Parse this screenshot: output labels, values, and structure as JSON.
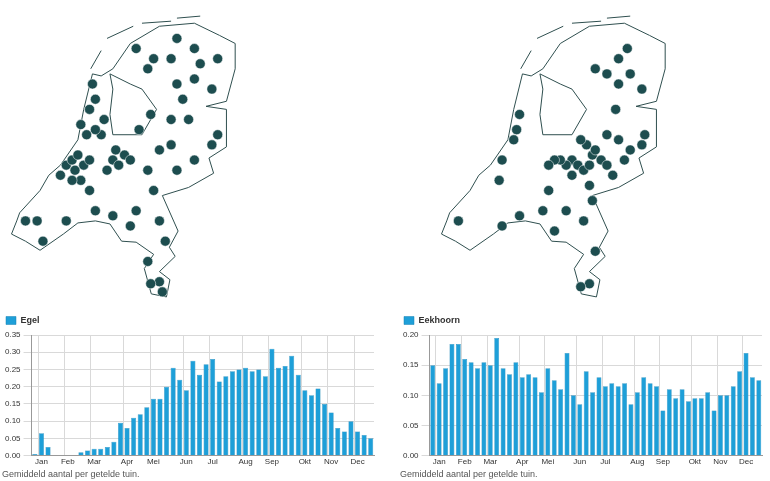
{
  "chart_data": [
    {
      "type": "scatter",
      "tick_labels": false,
      "grid": false,
      "color": "#1d4d4f",
      "xlim": [
        3.3,
        7.3
      ],
      "ylim": [
        50.7,
        53.6
      ],
      "x": [
        4.3,
        4.4,
        4.5,
        4.45,
        4.6,
        4.7,
        4.9,
        4.8,
        4.65,
        4.55,
        4.7,
        4.8,
        4.75,
        4.95,
        5.1,
        5.2,
        5.0,
        4.55,
        4.4,
        4.2,
        4.7,
        5.15,
        5.3,
        5.4,
        3.6,
        3.8,
        3.9,
        4.3,
        4.8,
        5.1,
        5.4,
        5.5,
        5.8,
        5.9,
        6.0,
        5.9,
        5.75,
        5.95,
        5.7,
        5.7,
        5.9,
        6.1,
        6.2,
        6.5,
        6.8,
        6.9,
        6.4,
        6.1,
        5.75,
        6.3,
        5.55,
        5.8,
        5.7,
        6.1,
        6.5,
        6.6,
        6.9,
        6.5,
        6.8,
        6.2,
        5.5,
        6.2
      ],
      "y": [
        52.05,
        52.1,
        52.15,
        52.0,
        52.05,
        52.1,
        52.35,
        52.4,
        52.35,
        52.45,
        52.6,
        52.7,
        52.85,
        52.5,
        52.1,
        52.05,
        52.0,
        51.9,
        51.9,
        51.95,
        51.8,
        52.2,
        52.15,
        52.1,
        51.5,
        51.5,
        51.3,
        51.5,
        51.6,
        51.55,
        51.45,
        51.6,
        51.8,
        51.5,
        51.3,
        50.9,
        50.88,
        50.8,
        51.1,
        52.0,
        52.2,
        52.25,
        52.0,
        52.1,
        52.25,
        52.35,
        52.5,
        52.5,
        52.55,
        52.7,
        52.4,
        53.1,
        53.0,
        53.1,
        53.2,
        53.05,
        53.1,
        52.9,
        52.8,
        52.85,
        53.2,
        53.3
      ]
    },
    {
      "type": "scatter",
      "tick_labels": false,
      "grid": false,
      "color": "#1d4d4f",
      "xlim": [
        3.3,
        7.3
      ],
      "ylim": [
        50.7,
        53.6
      ],
      "x": [
        5.6,
        5.7,
        5.8,
        5.9,
        5.95,
        5.85,
        5.75,
        6.0,
        6.1,
        6.2,
        6.3,
        5.5,
        5.4,
        5.3,
        5.2,
        6.5,
        6.6,
        6.8,
        6.85,
        6.4,
        6.2,
        5.9,
        5.6,
        6.55,
        6.4,
        6.6,
        6.4,
        6.2,
        6.8,
        6.0,
        6.35,
        5.5,
        5.1,
        4.7,
        4.4,
        3.65,
        5.8,
        6.0,
        5.9,
        5.75,
        5.95,
        5.3,
        5.2,
        4.65,
        4.6,
        4.4,
        4.35,
        4.7
      ],
      "y": [
        52.1,
        52.05,
        52.0,
        52.05,
        52.15,
        52.25,
        52.3,
        52.2,
        52.1,
        52.05,
        51.95,
        52.05,
        52.1,
        52.1,
        52.05,
        52.1,
        52.2,
        52.25,
        52.35,
        52.3,
        52.35,
        51.85,
        51.95,
        53.2,
        53.1,
        52.95,
        52.85,
        52.95,
        52.8,
        53.0,
        52.6,
        51.6,
        51.6,
        51.55,
        51.45,
        51.5,
        51.5,
        51.2,
        50.88,
        50.85,
        51.7,
        51.4,
        51.8,
        52.4,
        52.3,
        52.1,
        51.9,
        52.55
      ]
    },
    {
      "type": "bar",
      "subtitle": "Gemiddeld aantal per getelde tuin.",
      "grid": true,
      "legend": "top left",
      "categories": [
        null,
        "Jan",
        null,
        null,
        null,
        "Feb",
        null,
        null,
        null,
        "Mar",
        null,
        null,
        null,
        null,
        "Apr",
        null,
        null,
        null,
        "Mei",
        null,
        null,
        null,
        null,
        "Jun",
        null,
        null,
        null,
        "Jul",
        null,
        null,
        null,
        null,
        "Aug",
        null,
        null,
        null,
        "Sep",
        null,
        null,
        null,
        null,
        "Okt",
        null,
        null,
        null,
        "Nov",
        null,
        null,
        null,
        "Dec",
        null,
        null
      ],
      "series": [
        {
          "name": "Egel",
          "color": "#1e9fd8",
          "values": [
            0.005,
            0.065,
            0.025,
            0,
            0,
            0,
            0,
            0.01,
            0.015,
            0.02,
            0.02,
            0.025,
            0.04,
            0.095,
            0.08,
            0.11,
            0.12,
            0.14,
            0.165,
            0.165,
            0.2,
            0.255,
            0.22,
            0.19,
            0.275,
            0.235,
            0.265,
            0.28,
            0.215,
            0.23,
            0.245,
            0.25,
            0.255,
            0.245,
            0.25,
            0.23,
            0.31,
            0.255,
            0.26,
            0.29,
            0.235,
            0.19,
            0.175,
            0.195,
            0.15,
            0.125,
            0.08,
            0.07,
            0.1,
            0.07,
            0.06,
            0.05
          ]
        }
      ],
      "ylim": [
        0,
        0.35
      ],
      "yticks": [
        {
          "value": 0,
          "label": "0.00"
        },
        {
          "value": 0.05,
          "label": "0.05"
        },
        {
          "value": 0.1,
          "label": "0.10"
        },
        {
          "value": 0.15,
          "label": "0.15"
        },
        {
          "value": 0.2,
          "label": "0.20"
        },
        {
          "value": 0.25,
          "label": "0.25"
        },
        {
          "value": 0.3,
          "label": "0.30"
        },
        {
          "value": 0.35,
          "label": "0.35"
        }
      ]
    },
    {
      "type": "bar",
      "subtitle": "Gemiddeld aantal per getelde tuin.",
      "grid": true,
      "legend": "top left",
      "categories": [
        null,
        "Jan",
        null,
        null,
        null,
        "Feb",
        null,
        null,
        null,
        "Mar",
        null,
        null,
        null,
        null,
        "Apr",
        null,
        null,
        null,
        "Mei",
        null,
        null,
        null,
        null,
        "Jun",
        null,
        null,
        null,
        "Jul",
        null,
        null,
        null,
        null,
        "Aug",
        null,
        null,
        null,
        "Sep",
        null,
        null,
        null,
        null,
        "Okt",
        null,
        null,
        null,
        "Nov",
        null,
        null,
        null,
        "Dec",
        null,
        null
      ],
      "series": [
        {
          "name": "Eekhoorn",
          "color": "#1e9fd8",
          "values": [
            0.15,
            0.12,
            0.145,
            0.185,
            0.185,
            0.16,
            0.155,
            0.145,
            0.155,
            0.15,
            0.195,
            0.145,
            0.135,
            0.155,
            0.13,
            0.135,
            0.13,
            0.105,
            0.145,
            0.125,
            0.11,
            0.17,
            0.1,
            0.085,
            0.14,
            0.105,
            0.13,
            0.115,
            0.12,
            0.115,
            0.12,
            0.085,
            0.105,
            0.13,
            0.12,
            0.115,
            0.075,
            0.11,
            0.095,
            0.11,
            0.09,
            0.095,
            0.095,
            0.105,
            0.075,
            0.1,
            0.1,
            0.115,
            0.14,
            0.17,
            0.13,
            0.125
          ]
        }
      ],
      "ylim": [
        0,
        0.2
      ],
      "yticks": [
        {
          "value": 0,
          "label": "0.00"
        },
        {
          "value": 0.05,
          "label": "0.05"
        },
        {
          "value": 0.1,
          "label": "0.10"
        },
        {
          "value": 0.15,
          "label": "0.15"
        },
        {
          "value": 0.2,
          "label": "0.20"
        }
      ]
    }
  ]
}
